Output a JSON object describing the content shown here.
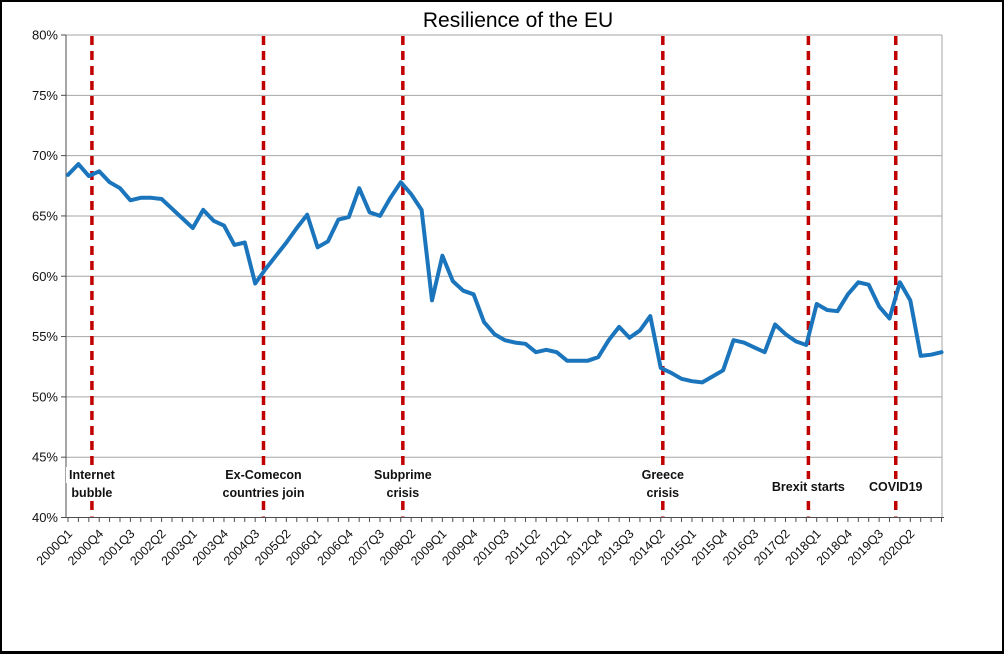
{
  "chart_data": {
    "type": "line",
    "title": "Resilience of the EU",
    "unit": "%",
    "ylim": [
      40,
      80
    ],
    "ytick_step": 5,
    "ytick_labels": [
      "40%",
      "45%",
      "50%",
      "55%",
      "60%",
      "65%",
      "70%",
      "75%",
      "80%"
    ],
    "grid": true,
    "legend": false,
    "x_start": "2000Q1",
    "x_end": "2021Q1",
    "n_points": 85,
    "x_label_interval": 3,
    "x_tick_labels": [
      "2000Q1",
      "2000Q4",
      "2001Q3",
      "2002Q2",
      "2003Q1",
      "2003Q4",
      "2004Q3",
      "2005Q2",
      "2006Q1",
      "2006Q4",
      "2007Q3",
      "2008Q2",
      "2009Q1",
      "2009Q4",
      "2010Q3",
      "2011Q2",
      "2012Q1",
      "2012Q4",
      "2013Q3",
      "2014Q2",
      "2015Q1",
      "2015Q4",
      "2016Q3",
      "2017Q2",
      "2018Q1",
      "2018Q4",
      "2019Q3",
      "2020Q2"
    ],
    "series": [
      {
        "name": "Resilience of the EU",
        "color": "#1B75BC",
        "values": [
          68.4,
          69.3,
          68.3,
          68.7,
          67.8,
          67.3,
          66.3,
          66.5,
          66.5,
          66.4,
          65.6,
          64.8,
          64.0,
          65.5,
          64.6,
          64.2,
          62.6,
          62.8,
          59.4,
          60.6,
          61.7,
          62.8,
          64.0,
          65.1,
          62.4,
          62.9,
          64.7,
          64.9,
          67.3,
          65.3,
          65.0,
          66.5,
          67.8,
          66.8,
          65.5,
          58.0,
          61.7,
          59.6,
          58.8,
          58.5,
          56.2,
          55.2,
          54.7,
          54.5,
          54.4,
          53.7,
          53.9,
          53.7,
          53.0,
          53.0,
          53.0,
          53.3,
          54.7,
          55.8,
          54.9,
          55.5,
          56.7,
          52.4,
          52.0,
          51.5,
          51.3,
          51.2,
          51.7,
          52.2,
          54.7,
          54.5,
          54.1,
          53.7,
          56.0,
          55.2,
          54.6,
          54.3,
          57.7,
          57.2,
          57.1,
          58.5,
          59.5,
          59.3,
          57.5,
          56.5,
          59.5,
          58.0,
          53.4,
          53.5,
          53.7
        ]
      }
    ],
    "events": [
      {
        "label_lines": [
          "Internet",
          "bubble"
        ],
        "quarter_index": 2.3
      },
      {
        "label_lines": [
          "Ex-Comecon",
          "countries join"
        ],
        "quarter_index": 18.8
      },
      {
        "label_lines": [
          "Subprime",
          "crisis"
        ],
        "quarter_index": 32.2
      },
      {
        "label_lines": [
          "Greece",
          "crisis"
        ],
        "quarter_index": 57.2
      },
      {
        "label_lines": [
          "Brexit starts"
        ],
        "quarter_index": 71.2
      },
      {
        "label_lines": [
          "COVID19"
        ],
        "quarter_index": 79.6
      }
    ],
    "colors": {
      "line": "#1B75BC",
      "event_line": "#C00000",
      "gridline": "#A6A6A6",
      "axis": "#4d4d4d",
      "text": "#111111",
      "background": "#FFFFFF",
      "frame": "#000000"
    }
  }
}
